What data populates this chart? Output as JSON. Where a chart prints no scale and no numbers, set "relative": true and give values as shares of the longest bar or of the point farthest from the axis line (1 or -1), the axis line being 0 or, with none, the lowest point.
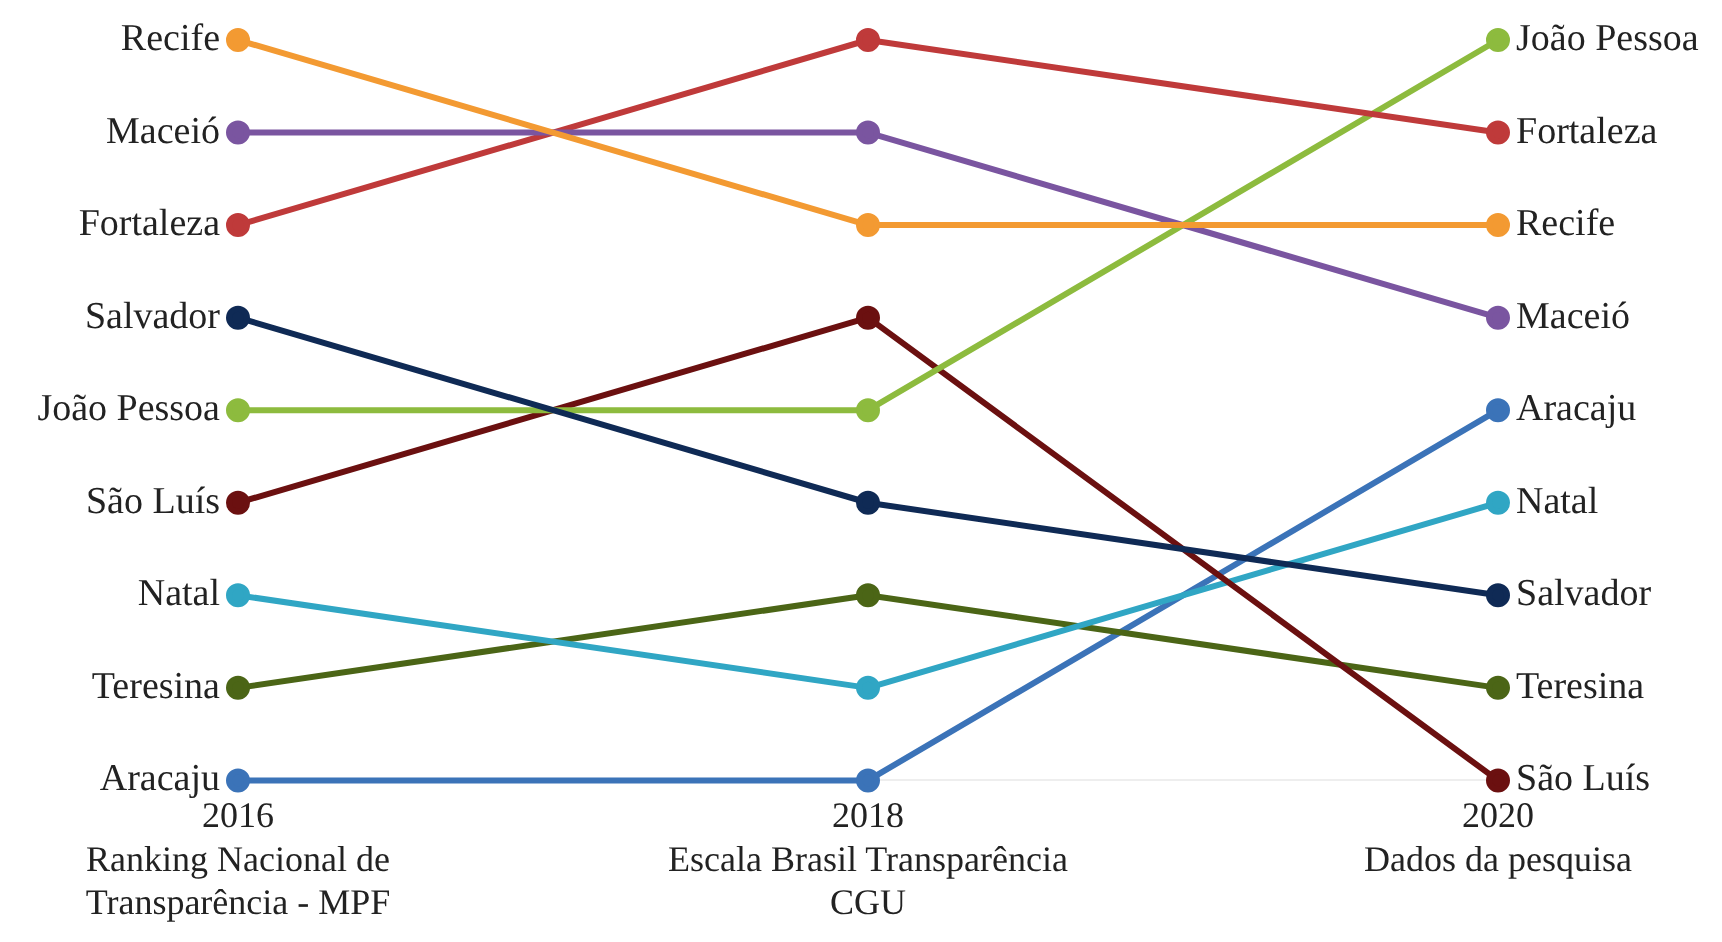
{
  "chart_data": {
    "type": "line",
    "relative": true,
    "legend": false,
    "marker": "circle",
    "line_style": "solid",
    "grid": false,
    "categories": [
      "2016\nRanking Nacional de\nTransparência - MPF",
      "2018\nEscala Brasil Transparência\nCGU",
      "2020\nDados da pesquisa"
    ],
    "series": [
      {
        "name": "Recife",
        "color": "#f39a32",
        "values": [
          1,
          0.75,
          0.75
        ]
      },
      {
        "name": "Maceió",
        "color": "#7a55a0",
        "values": [
          0.875,
          0.875,
          0.625
        ]
      },
      {
        "name": "Fortaleza",
        "color": "#bf3a3a",
        "values": [
          0.75,
          1,
          0.875
        ]
      },
      {
        "name": "Salvador",
        "color": "#0f2a55",
        "values": [
          0.625,
          0.375,
          0.25
        ]
      },
      {
        "name": "João Pessoa",
        "color": "#8dbb3e",
        "values": [
          0.5,
          0.5,
          1
        ]
      },
      {
        "name": "São Luís",
        "color": "#6b1010",
        "values": [
          0.375,
          0.625,
          0
        ]
      },
      {
        "name": "Natal",
        "color": "#30a6c4",
        "values": [
          0.25,
          0.125,
          0.375
        ]
      },
      {
        "name": "Teresina",
        "color": "#4b6516",
        "values": [
          0.125,
          0.25,
          0.125
        ]
      },
      {
        "name": "Aracaju",
        "color": "#3b73b8",
        "values": [
          0,
          0,
          0.5
        ]
      }
    ]
  }
}
